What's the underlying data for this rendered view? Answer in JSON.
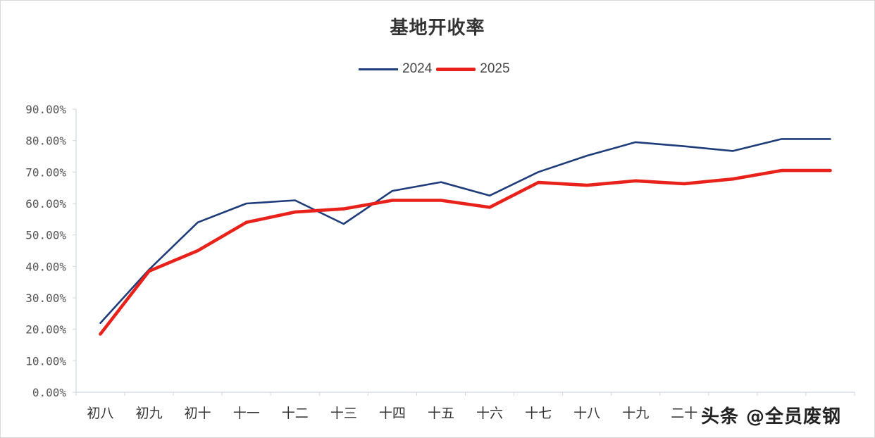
{
  "chart_data": {
    "type": "line",
    "title": "基地开收率",
    "categories": [
      "初八",
      "初九",
      "初十",
      "十一",
      "十二",
      "十三",
      "十四",
      "十五",
      "十六",
      "十七",
      "十八",
      "十九",
      "二十",
      "",
      "",
      ""
    ],
    "series": [
      {
        "name": "2024",
        "color": "#1f3c7a",
        "values": [
          22,
          39,
          54,
          60,
          61,
          53.5,
          64,
          66.8,
          62.5,
          70,
          75.2,
          79.5,
          78.2,
          76.7,
          80.5,
          80.5
        ]
      },
      {
        "name": "2025",
        "color": "#e8221a",
        "values": [
          18.5,
          38.5,
          45,
          54,
          57.3,
          58.3,
          61,
          61,
          58.8,
          66.7,
          65.8,
          67.2,
          66.3,
          67.8,
          70.5,
          70.5
        ]
      }
    ],
    "yticks": [
      "0.00%",
      "10.00%",
      "20.00%",
      "30.00%",
      "40.00%",
      "50.00%",
      "60.00%",
      "70.00%",
      "80.00%",
      "90.00%"
    ],
    "ylim": [
      0,
      90
    ],
    "grid": false,
    "legend_position": "top-center"
  },
  "watermark": "头条 @全员废钢"
}
